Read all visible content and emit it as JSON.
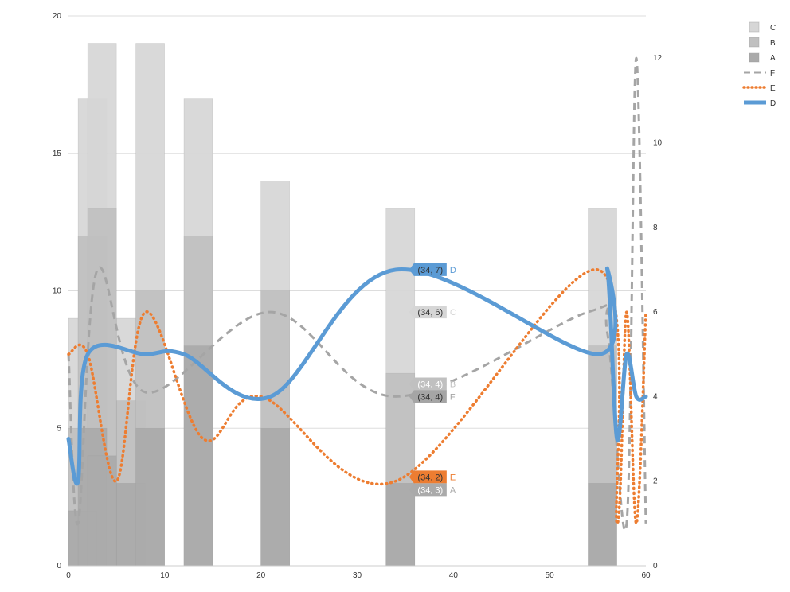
{
  "chart_data": {
    "type": "bar",
    "title": "",
    "xlabel": "",
    "ylabel": "",
    "y2label": "",
    "xlim": [
      0,
      60
    ],
    "ylim": [
      0,
      20
    ],
    "y2lim": [
      0,
      13
    ],
    "xticks": [
      "0",
      "10",
      "20",
      "30",
      "40",
      "50",
      "60"
    ],
    "yticks": [
      "0",
      "5",
      "10",
      "15",
      "20"
    ],
    "y2ticks": [
      "0",
      "2",
      "4",
      "6",
      "8",
      "10",
      "12"
    ],
    "grid": "horizontal",
    "legend_position": "top-right",
    "bar_series": [
      {
        "name": "C",
        "color": "#d6d6d6",
        "points": [
          [
            0,
            9
          ],
          [
            1,
            17
          ],
          [
            2,
            19
          ],
          [
            5,
            9
          ],
          [
            7,
            19
          ],
          [
            12,
            17
          ],
          [
            20,
            14
          ],
          [
            33,
            13
          ],
          [
            54,
            13
          ]
        ]
      },
      {
        "name": "B",
        "color": "#c0c0c0",
        "points": [
          [
            0,
            5
          ],
          [
            1,
            12
          ],
          [
            2,
            13
          ],
          [
            5,
            6
          ],
          [
            7,
            10
          ],
          [
            12,
            12
          ],
          [
            20,
            10
          ],
          [
            33,
            7
          ],
          [
            54,
            8
          ]
        ]
      },
      {
        "name": "A",
        "color": "#aaaaaa",
        "points": [
          [
            0,
            2
          ],
          [
            1,
            5
          ],
          [
            2,
            4
          ],
          [
            5,
            3
          ],
          [
            7,
            5
          ],
          [
            12,
            8
          ],
          [
            20,
            5
          ],
          [
            33,
            3
          ],
          [
            54,
            3
          ]
        ]
      }
    ],
    "line_series": [
      {
        "name": "F",
        "axis": "right",
        "color": "#a5a5a5",
        "style": "dashed",
        "points": [
          [
            0,
            5
          ],
          [
            1,
            1
          ],
          [
            3,
            7
          ],
          [
            8,
            4.1
          ],
          [
            21,
            6
          ],
          [
            34,
            4
          ],
          [
            54,
            6
          ],
          [
            56,
            5.5
          ],
          [
            58,
            1
          ],
          [
            59,
            12
          ],
          [
            60,
            1
          ]
        ]
      },
      {
        "name": "E",
        "axis": "right",
        "color": "#ed7d31",
        "style": "dotted",
        "points": [
          [
            0,
            5
          ],
          [
            2,
            5
          ],
          [
            5,
            2
          ],
          [
            8,
            6
          ],
          [
            14,
            3
          ],
          [
            20,
            4
          ],
          [
            34,
            2
          ],
          [
            55,
            7
          ],
          [
            57,
            1
          ],
          [
            58,
            6
          ],
          [
            59,
            1
          ],
          [
            60,
            6
          ]
        ]
      },
      {
        "name": "D",
        "axis": "right",
        "color": "#5b9bd5",
        "style": "solid",
        "points": [
          [
            0,
            3
          ],
          [
            1,
            2
          ],
          [
            2,
            5
          ],
          [
            8,
            5
          ],
          [
            12,
            5
          ],
          [
            21,
            4
          ],
          [
            34,
            7
          ],
          [
            55,
            5
          ],
          [
            56,
            7
          ],
          [
            57,
            3
          ],
          [
            58,
            5
          ],
          [
            59,
            4
          ],
          [
            60,
            4
          ]
        ]
      }
    ],
    "data_labels": [
      {
        "series": "C",
        "text": "(34, 6)",
        "name": "C",
        "x": 34,
        "y": 6,
        "color": "#d6d6d6",
        "text_color": "#333333"
      },
      {
        "series": "D",
        "text": "(34, 7)",
        "name": "D",
        "x": 34,
        "y": 7,
        "color": "#5b9bd5",
        "text_color": "#333333"
      },
      {
        "series": "B",
        "text": "(34, 4)",
        "name": "B",
        "x": 34,
        "y": 4.3,
        "color": "#c0c0c0",
        "text_color": "#ffffff"
      },
      {
        "series": "F",
        "text": "(34, 4)",
        "name": "F",
        "x": 34,
        "y": 4,
        "color": "#a5a5a5",
        "text_color": "#333333"
      },
      {
        "series": "E",
        "text": "(34, 2)",
        "name": "E",
        "x": 34,
        "y": 2.1,
        "color": "#ed7d31",
        "text_color": "#333333"
      },
      {
        "series": "A",
        "text": "(34, 3)",
        "name": "A",
        "x": 34,
        "y": 1.8,
        "color": "#aaaaaa",
        "text_color": "#ffffff"
      }
    ],
    "legend": [
      {
        "name": "C",
        "kind": "box",
        "color": "#d6d6d6"
      },
      {
        "name": "B",
        "kind": "box",
        "color": "#c0c0c0"
      },
      {
        "name": "A",
        "kind": "box",
        "color": "#aaaaaa"
      },
      {
        "name": "F",
        "kind": "dashed",
        "color": "#a5a5a5"
      },
      {
        "name": "E",
        "kind": "dotted",
        "color": "#ed7d31"
      },
      {
        "name": "D",
        "kind": "solid",
        "color": "#5b9bd5"
      }
    ]
  }
}
